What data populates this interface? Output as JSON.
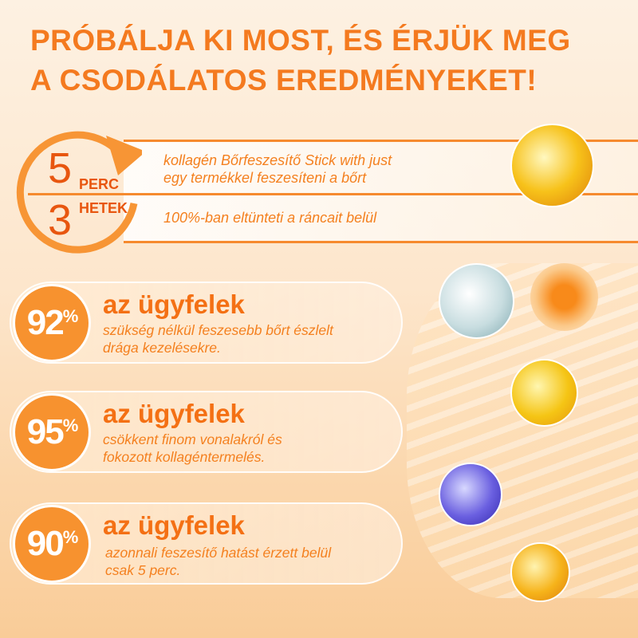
{
  "headline": {
    "line1": "PRÓBÁLJA KI MOST, ÉS ÉRJÜK MEG",
    "line2": "A CSODÁLATOS EREDMÉNYEKET!"
  },
  "timing": {
    "minutes_value": "5",
    "minutes_unit": "PERC",
    "weeks_value": "3",
    "weeks_unit": "HETEK",
    "line1a": "kollagén Bőrfeszesítő Stick with just",
    "line1b": "egy termékkel feszesíteni a bőrt",
    "line2": "100%-ban eltünteti a ráncait belül"
  },
  "stats": [
    {
      "value": "92",
      "unit": "%",
      "title": "az ügyfelek",
      "desc1": "szükség nélkül feszesebb bőrt észlelt",
      "desc2": "drága kezelésekre."
    },
    {
      "value": "95",
      "unit": "%",
      "title": "az ügyfelek",
      "desc1": "csökkent finom vonalakról és",
      "desc2": "fokozott kollagéntermelés."
    },
    {
      "value": "90",
      "unit": "%",
      "title": "az ügyfelek",
      "desc1": "azonnali feszesítő hatást érzett belül",
      "desc2": "csak 5 perc."
    }
  ],
  "colors": {
    "accent": "#f47a1f",
    "circle": "#f7922f"
  }
}
